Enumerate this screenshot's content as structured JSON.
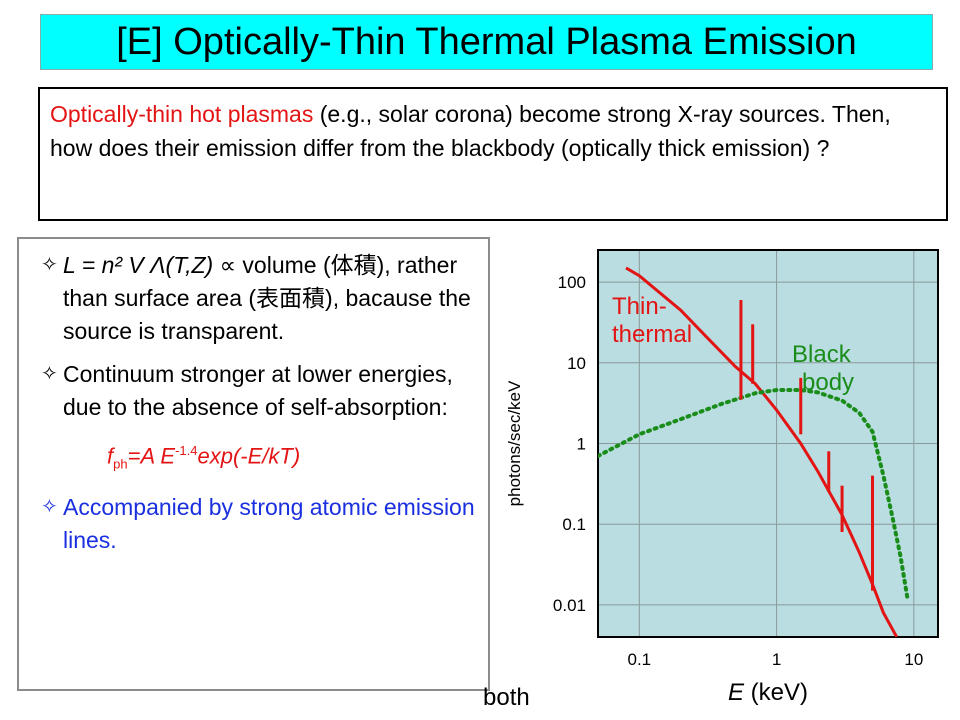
{
  "slide": {
    "title": "[E] Optically-Thin Thermal Plasma Emission",
    "intro": {
      "highlight": "Optically-thin hot plasmas",
      "rest": " (e.g., solar corona) become strong X-ray sources. Then, how does their emission  differ from the blackbody (optically thick emission) ?"
    },
    "bullets": [
      {
        "marker": "✧",
        "formula": "L = n² V Λ(T,Z) ∝",
        "text": " volume (体積), rather than surface area (表面積), bacause the source is transparent."
      },
      {
        "marker": "✧",
        "text": "Continuum  stronger at lower energies, due to the absence of self-absorption:"
      },
      {
        "marker": "✧",
        "text": "Accompanied by strong atomic emission lines."
      }
    ],
    "formula": {
      "f": "f",
      "ph": "ph",
      "eq": "=A E",
      "exp": "-1.4",
      "tail": "exp(-E/kT)"
    },
    "footer_fragment": "both"
  },
  "chart_data": {
    "type": "line",
    "xlabel": "E (keV)",
    "ylabel": "photons/sec/keV",
    "x_scale": "log",
    "y_scale": "log",
    "xlim": [
      0.05,
      15
    ],
    "ylim": [
      0.004,
      250
    ],
    "x_ticks": [
      0.1,
      1,
      10
    ],
    "x_tick_labels": [
      "0.1",
      "1",
      "10"
    ],
    "y_ticks": [
      100,
      10,
      1,
      0.1,
      0.01
    ],
    "y_tick_labels": [
      "100",
      "10",
      "1",
      "0.1",
      "0.01"
    ],
    "grid": true,
    "background": "#b9dde0",
    "series": [
      {
        "label_lines": [
          "Thin-",
          "thermal"
        ],
        "color": "#e31414",
        "style": "solid",
        "points": [
          [
            0.08,
            150
          ],
          [
            0.1,
            120
          ],
          [
            0.2,
            45
          ],
          [
            0.3,
            22
          ],
          [
            0.5,
            9
          ],
          [
            0.7,
            5.5
          ],
          [
            1,
            2.6
          ],
          [
            1.5,
            1.0
          ],
          [
            2,
            0.45
          ],
          [
            3,
            0.13
          ],
          [
            4,
            0.045
          ],
          [
            5,
            0.018
          ],
          [
            6,
            0.008
          ],
          [
            7.5,
            0.004
          ]
        ]
      },
      {
        "label_lines": [
          "Black",
          "body"
        ],
        "color": "#1a8c1a",
        "style": "dotted",
        "points": [
          [
            0.05,
            0.7
          ],
          [
            0.1,
            1.3
          ],
          [
            0.2,
            2.0
          ],
          [
            0.4,
            3.1
          ],
          [
            0.7,
            4.2
          ],
          [
            1,
            4.6
          ],
          [
            1.5,
            4.6
          ],
          [
            2,
            4.3
          ],
          [
            3,
            3.4
          ],
          [
            4,
            2.4
          ],
          [
            5,
            1.4
          ],
          [
            6,
            0.4
          ],
          [
            7,
            0.12
          ],
          [
            8,
            0.04
          ],
          [
            9,
            0.012
          ]
        ]
      }
    ],
    "emission_lines": [
      {
        "x": 0.55,
        "y_from": 3.5,
        "y_to": 60
      },
      {
        "x": 0.67,
        "y_from": 5.5,
        "y_to": 30
      },
      {
        "x": 1.5,
        "y_from": 1.3,
        "y_to": 6.5
      },
      {
        "x": 2.4,
        "y_from": 0.25,
        "y_to": 0.8
      },
      {
        "x": 3.0,
        "y_from": 0.08,
        "y_to": 0.3
      },
      {
        "x": 5.0,
        "y_from": 0.015,
        "y_to": 0.4
      }
    ]
  }
}
